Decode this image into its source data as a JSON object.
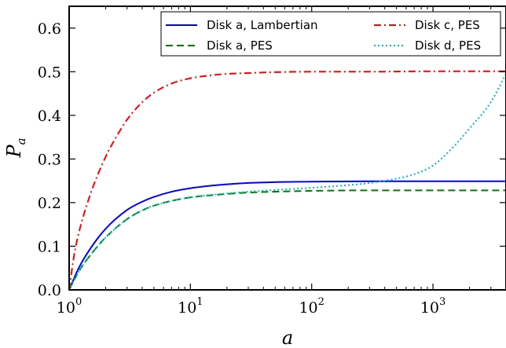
{
  "chart_data": {
    "type": "line",
    "xlabel": "a",
    "ylabel": "P",
    "ylabel_sub": "a",
    "xscale": "log",
    "xlim": [
      1,
      4000
    ],
    "ylim": [
      0,
      0.65
    ],
    "x_ticks": [
      {
        "value": 1,
        "base": "10",
        "exp": "0"
      },
      {
        "value": 10,
        "base": "10",
        "exp": "1"
      },
      {
        "value": 100,
        "base": "10",
        "exp": "2"
      },
      {
        "value": 1000,
        "base": "10",
        "exp": "3"
      }
    ],
    "y_ticks": [
      {
        "value": 0.0,
        "label": "0.0"
      },
      {
        "value": 0.1,
        "label": "0.1"
      },
      {
        "value": 0.2,
        "label": "0.2"
      },
      {
        "value": 0.3,
        "label": "0.3"
      },
      {
        "value": 0.4,
        "label": "0.4"
      },
      {
        "value": 0.5,
        "label": "0.5"
      },
      {
        "value": 0.6,
        "label": "0.6"
      }
    ],
    "grid": false,
    "legend_position": "top-right",
    "series": [
      {
        "name": "Disk a, Lambertian",
        "color": "#0000ff",
        "dash": "solid",
        "x": [
          1,
          1.2,
          1.5,
          2,
          3,
          4,
          5,
          7,
          10,
          15,
          20,
          30,
          50,
          100,
          300,
          1000,
          4000
        ],
        "y": [
          0.0,
          0.05,
          0.095,
          0.14,
          0.183,
          0.202,
          0.213,
          0.225,
          0.233,
          0.239,
          0.242,
          0.245,
          0.247,
          0.248,
          0.249,
          0.249,
          0.249
        ]
      },
      {
        "name": "Disk a, PES",
        "color": "#008000",
        "dash": "dashed",
        "x": [
          1,
          1.2,
          1.5,
          2,
          3,
          4,
          5,
          7,
          10,
          15,
          20,
          30,
          50,
          100,
          300,
          1000,
          4000
        ],
        "y": [
          0.0,
          0.042,
          0.08,
          0.12,
          0.162,
          0.182,
          0.193,
          0.204,
          0.212,
          0.217,
          0.22,
          0.223,
          0.225,
          0.227,
          0.228,
          0.228,
          0.228
        ]
      },
      {
        "name": "Disk c, PES",
        "color": "#ff0000",
        "dash": "dashdot",
        "x": [
          1,
          1.1,
          1.2,
          1.5,
          2,
          2.5,
          3,
          4,
          5,
          7,
          10,
          15,
          20,
          30,
          50,
          100,
          300,
          1000,
          4000
        ],
        "y": [
          0.0,
          0.08,
          0.13,
          0.22,
          0.305,
          0.355,
          0.39,
          0.43,
          0.452,
          0.473,
          0.485,
          0.492,
          0.495,
          0.497,
          0.499,
          0.5,
          0.5,
          0.501,
          0.501
        ]
      },
      {
        "name": "Disk d, PES",
        "color": "#00bfbf",
        "dash": "dotted",
        "x": [
          1,
          1.2,
          1.5,
          2,
          3,
          4,
          5,
          7,
          10,
          15,
          20,
          30,
          50,
          100,
          200,
          300,
          500,
          700,
          1000,
          1500,
          2000,
          3000,
          4000
        ],
        "y": [
          0.0,
          0.042,
          0.08,
          0.12,
          0.162,
          0.182,
          0.193,
          0.204,
          0.212,
          0.218,
          0.221,
          0.225,
          0.229,
          0.234,
          0.24,
          0.245,
          0.255,
          0.265,
          0.285,
          0.33,
          0.37,
          0.43,
          0.495
        ]
      }
    ]
  }
}
